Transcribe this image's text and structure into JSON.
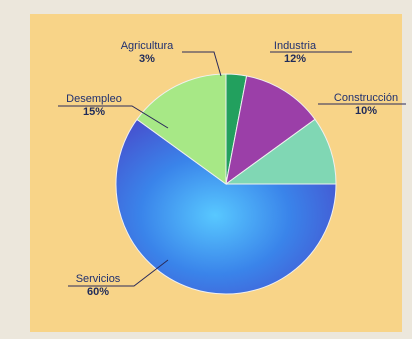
{
  "chart_data": {
    "type": "pie",
    "slices": [
      {
        "label": "Agricultura",
        "value": 3,
        "value_label": "3%",
        "color": "#22a05e"
      },
      {
        "label": "Industria",
        "value": 12,
        "value_label": "12%",
        "color": "#9b3fa8"
      },
      {
        "label": "Construcción",
        "value": 10,
        "value_label": "10%",
        "color": "#80d7b4"
      },
      {
        "label": "Servicios",
        "value": 60,
        "value_label": "60%",
        "color": "#3f66e0"
      },
      {
        "label": "Desempleo",
        "value": 15,
        "value_label": "15%",
        "color": "#a7e886"
      }
    ],
    "legend": "none"
  },
  "colors": {
    "panel": "#f8d488",
    "label_text": "#203070"
  }
}
